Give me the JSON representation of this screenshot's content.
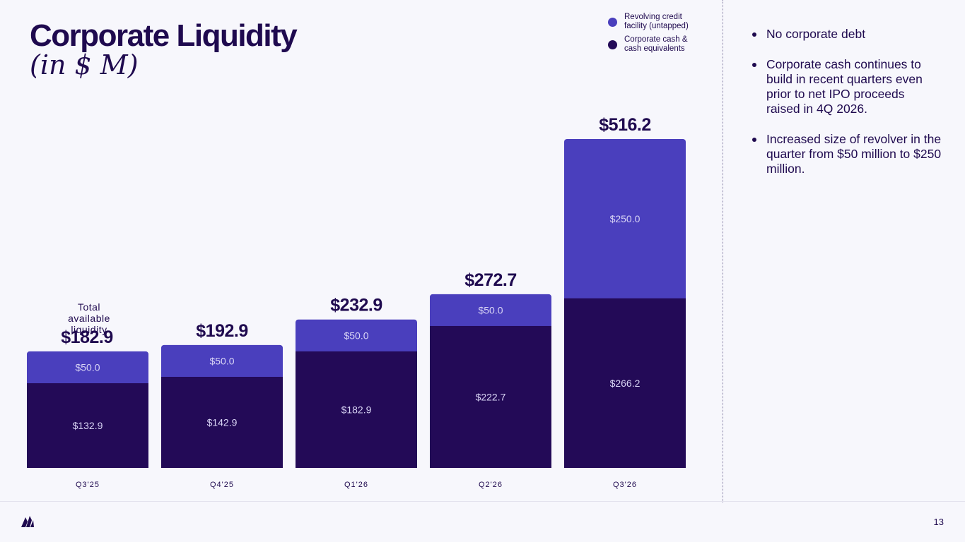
{
  "slide": {
    "title": "Corporate Liquidity",
    "subtitle": "(in $ M)",
    "page_number": "13",
    "bullets": [
      "No corporate debt",
      "Corporate cash continues to build in recent quarters even prior to net IPO proceeds raised in 4Q 2026.",
      "Increased size of revolver in the quarter from $50 million to $250 million."
    ]
  },
  "legend": [
    {
      "label": "Revolving credit facility (untapped)",
      "color": "#4a3fbd"
    },
    {
      "label": "Corporate cash & cash equivalents",
      "color": "#230a57"
    }
  ],
  "chart_data": {
    "type": "bar",
    "stacked": true,
    "categories": [
      "Q3'25",
      "Q4'25",
      "Q1'26",
      "Q2'26",
      "Q3'26"
    ],
    "series": [
      {
        "name": "Corporate cash & cash equivalents",
        "values": [
          132.9,
          142.9,
          182.9,
          222.7,
          266.2
        ],
        "labels": [
          "$132.9",
          "$142.9",
          "$182.9",
          "$222.7",
          "$266.2"
        ],
        "color": "#230a57"
      },
      {
        "name": "Revolving credit facility (untapped)",
        "values": [
          50.0,
          50.0,
          50.0,
          50.0,
          250.0
        ],
        "labels": [
          "$50.0",
          "$50.0",
          "$50.0",
          "$50.0",
          "$250.0"
        ],
        "color": "#4a3fbd"
      }
    ],
    "totals": [
      182.9,
      192.9,
      232.9,
      272.7,
      516.2
    ],
    "total_labels": [
      "$182.9",
      "$192.9",
      "$232.9",
      "$272.7",
      "$516.2"
    ],
    "annotation": "Total available liquidity",
    "ylim": [
      0,
      560
    ]
  }
}
